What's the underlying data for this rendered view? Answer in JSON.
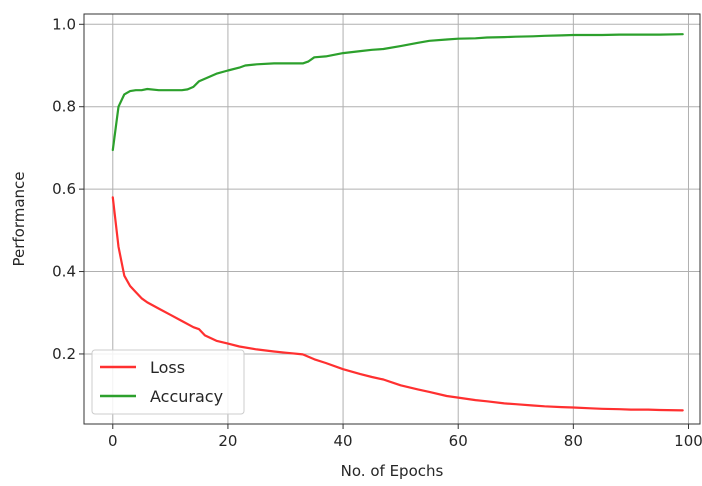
{
  "chart_data": {
    "type": "line",
    "title": "",
    "xlabel": "No. of Epochs",
    "ylabel": "Performance",
    "xlim": [
      -5,
      102
    ],
    "ylim": [
      0.03,
      1.025
    ],
    "xticks": [
      0,
      20,
      40,
      60,
      80,
      100
    ],
    "yticks": [
      0.2,
      0.4,
      0.6,
      0.8,
      1.0
    ],
    "xtick_labels": [
      "0",
      "20",
      "40",
      "60",
      "80",
      "100"
    ],
    "ytick_labels": [
      "0.2",
      "0.4",
      "0.6",
      "0.8",
      "1.0"
    ],
    "grid": true,
    "legend": "bottom-left",
    "series": [
      {
        "name": "Loss",
        "color": "#ff3030",
        "x": [
          0,
          1,
          2,
          3,
          4,
          5,
          6,
          8,
          10,
          12,
          14,
          15,
          16,
          18,
          20,
          22,
          25,
          28,
          30,
          33,
          35,
          37,
          40,
          43,
          45,
          47,
          50,
          53,
          55,
          58,
          60,
          63,
          65,
          68,
          70,
          73,
          75,
          78,
          80,
          83,
          85,
          88,
          90,
          93,
          95,
          99
        ],
        "y": [
          0.58,
          0.46,
          0.39,
          0.365,
          0.35,
          0.335,
          0.325,
          0.31,
          0.295,
          0.28,
          0.265,
          0.26,
          0.245,
          0.232,
          0.225,
          0.218,
          0.211,
          0.206,
          0.203,
          0.199,
          0.187,
          0.178,
          0.163,
          0.151,
          0.144,
          0.138,
          0.124,
          0.114,
          0.108,
          0.098,
          0.094,
          0.088,
          0.085,
          0.08,
          0.078,
          0.075,
          0.073,
          0.071,
          0.07,
          0.068,
          0.067,
          0.066,
          0.065,
          0.065,
          0.064,
          0.063
        ]
      },
      {
        "name": "Accuracy",
        "color": "#2ca02c",
        "x": [
          0,
          1,
          2,
          3,
          4,
          5,
          6,
          8,
          10,
          12,
          13,
          14,
          15,
          16,
          18,
          20,
          22,
          23,
          25,
          28,
          30,
          33,
          34,
          35,
          37,
          40,
          43,
          45,
          47,
          50,
          53,
          55,
          58,
          60,
          63,
          65,
          68,
          70,
          73,
          75,
          78,
          80,
          83,
          85,
          88,
          90,
          93,
          95,
          99
        ],
        "y": [
          0.695,
          0.8,
          0.83,
          0.838,
          0.84,
          0.84,
          0.843,
          0.84,
          0.84,
          0.84,
          0.842,
          0.848,
          0.862,
          0.868,
          0.88,
          0.888,
          0.895,
          0.9,
          0.903,
          0.905,
          0.905,
          0.905,
          0.91,
          0.92,
          0.922,
          0.93,
          0.935,
          0.938,
          0.94,
          0.947,
          0.955,
          0.96,
          0.963,
          0.965,
          0.966,
          0.968,
          0.969,
          0.97,
          0.971,
          0.972,
          0.973,
          0.974,
          0.974,
          0.974,
          0.975,
          0.975,
          0.975,
          0.975,
          0.976
        ]
      }
    ]
  }
}
